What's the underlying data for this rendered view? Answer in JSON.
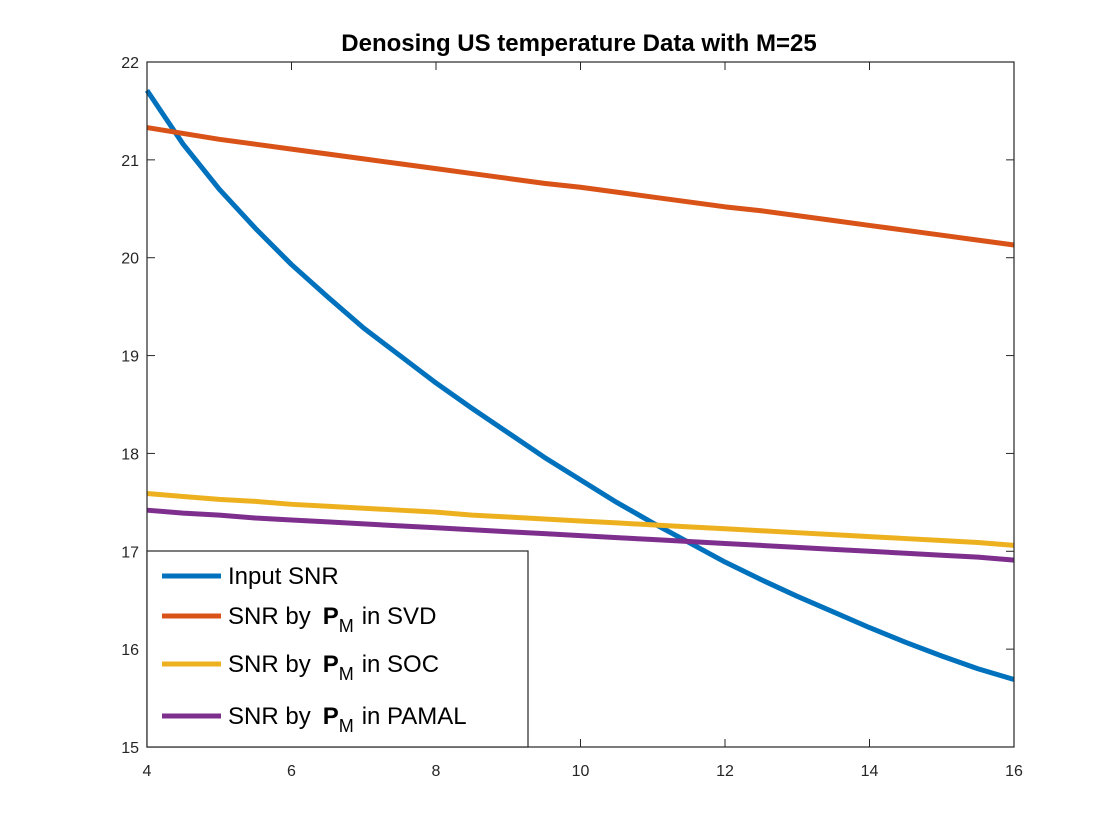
{
  "chart_data": {
    "type": "line",
    "title": "Denosing US temperature Data with M=25",
    "xlabel": "",
    "ylabel": "",
    "xlim": [
      4,
      16
    ],
    "ylim": [
      15,
      22
    ],
    "xticks": [
      4,
      6,
      8,
      10,
      12,
      14,
      16
    ],
    "yticks": [
      15,
      16,
      17,
      18,
      19,
      20,
      21,
      22
    ],
    "grid": false,
    "legend_position": "bottom-left",
    "x": [
      4,
      4.5,
      5,
      5.5,
      6,
      6.5,
      7,
      7.5,
      8,
      8.5,
      9,
      9.5,
      10,
      10.5,
      11,
      11.5,
      12,
      12.5,
      13,
      13.5,
      14,
      14.5,
      15,
      15.5,
      16
    ],
    "series": [
      {
        "name": "Input SNR",
        "legend": {
          "prefix": "Input SNR"
        },
        "color": "#0072BD",
        "values": [
          21.71,
          21.16,
          20.7,
          20.3,
          19.93,
          19.6,
          19.28,
          19.0,
          18.72,
          18.46,
          18.21,
          17.96,
          17.73,
          17.5,
          17.29,
          17.09,
          16.89,
          16.71,
          16.54,
          16.38,
          16.22,
          16.07,
          15.93,
          15.8,
          15.69
        ]
      },
      {
        "name": "SNR by P_M in SVD",
        "legend": {
          "prefix": "SNR by",
          "bold": "P",
          "subscript": "M",
          "suffix": "in SVD"
        },
        "color": "#D95319",
        "values": [
          21.33,
          21.27,
          21.21,
          21.16,
          21.11,
          21.06,
          21.01,
          20.96,
          20.91,
          20.86,
          20.81,
          20.76,
          20.72,
          20.67,
          20.62,
          20.57,
          20.52,
          20.48,
          20.43,
          20.38,
          20.33,
          20.28,
          20.23,
          20.18,
          20.13
        ]
      },
      {
        "name": "SNR by P_M in SOC",
        "legend": {
          "prefix": "SNR by",
          "bold": "P",
          "subscript": "M",
          "suffix": "in SOC"
        },
        "color": "#EDB120",
        "values": [
          17.59,
          17.56,
          17.53,
          17.51,
          17.48,
          17.46,
          17.44,
          17.42,
          17.4,
          17.37,
          17.35,
          17.33,
          17.31,
          17.29,
          17.27,
          17.25,
          17.23,
          17.21,
          17.19,
          17.17,
          17.15,
          17.13,
          17.11,
          17.09,
          17.06
        ]
      },
      {
        "name": "SNR by P_M in PAMAL",
        "legend": {
          "prefix": "SNR by",
          "bold": "P",
          "subscript": "M",
          "suffix": "in PAMAL"
        },
        "color": "#7E2F8E",
        "values": [
          17.42,
          17.39,
          17.37,
          17.34,
          17.32,
          17.3,
          17.28,
          17.26,
          17.24,
          17.22,
          17.2,
          17.18,
          17.16,
          17.14,
          17.12,
          17.1,
          17.08,
          17.06,
          17.04,
          17.02,
          17.0,
          16.98,
          16.96,
          16.94,
          16.91
        ]
      }
    ]
  }
}
